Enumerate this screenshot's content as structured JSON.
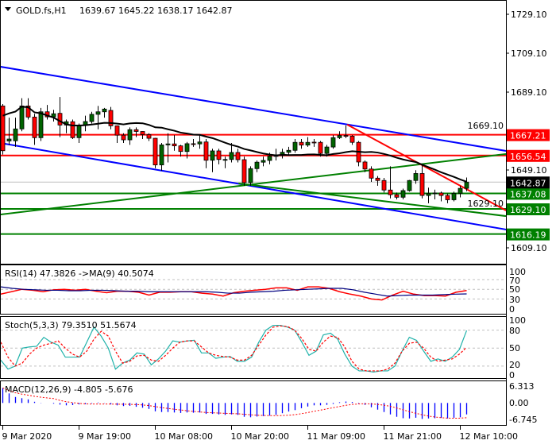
{
  "header": {
    "menu_icon": "triangle-down-icon",
    "symbol": "GOLD.fs,H1",
    "ohlc_readout": "1639.67 1645.22 1638.17 1642.87"
  },
  "colors": {
    "bull": "#006400",
    "bear": "#ff0000",
    "channel": "#0000ff",
    "ma": "#000000",
    "support": "#008000",
    "resistance": "#ff0000",
    "rsi": "#ff0000",
    "rsi_ma": "#000080",
    "stoch_main": "#20b2aa",
    "stoch_signal": "#ff0000",
    "macd_hist": "#0000ff",
    "macd_signal": "#ff0000"
  },
  "chart_data": [
    {
      "type": "candlestick",
      "title": "GOLD.fs,H1",
      "ylim": [
        1604,
        1737
      ],
      "y_ticks": [
        "1729.10",
        "1709.10",
        "1689.10",
        "1669.10",
        "1649.10",
        "1629.10",
        "1609.10"
      ],
      "x_ticks": [
        {
          "bar": 0,
          "label": "9 Mar 2020"
        },
        {
          "bar": 12,
          "label": "9 Mar 19:00"
        },
        {
          "bar": 24,
          "label": "10 Mar 08:00"
        },
        {
          "bar": 36,
          "label": "10 Mar 20:00"
        },
        {
          "bar": 48,
          "label": "11 Mar 09:00"
        },
        {
          "bar": 60,
          "label": "11 Mar 21:00"
        },
        {
          "bar": 72,
          "label": "12 Mar 10:00"
        }
      ],
      "ohlc": [
        [
          1682,
          1683,
          1657,
          1659
        ],
        [
          1664,
          1676,
          1662,
          1665
        ],
        [
          1664.1,
          1676,
          1661,
          1670.2
        ],
        [
          1670.2,
          1686,
          1669,
          1682
        ],
        [
          1682,
          1686,
          1675,
          1676.3
        ],
        [
          1676.3,
          1678,
          1662,
          1665.7
        ],
        [
          1665.7,
          1681,
          1664,
          1679
        ],
        [
          1679,
          1682.5,
          1675,
          1676.4
        ],
        [
          1676.4,
          1680,
          1674,
          1678
        ],
        [
          1678.2,
          1686.6,
          1666,
          1672.2
        ],
        [
          1672.2,
          1675,
          1668,
          1673.9
        ],
        [
          1673.9,
          1675,
          1665,
          1665.7
        ],
        [
          1665.7,
          1673,
          1663,
          1672.2
        ],
        [
          1672.2,
          1677,
          1669,
          1674
        ],
        [
          1674,
          1679,
          1673,
          1677.7
        ],
        [
          1677.7,
          1682,
          1670,
          1679
        ],
        [
          1679,
          1681,
          1676,
          1680.4
        ],
        [
          1679.7,
          1681.5,
          1670,
          1671.8
        ],
        [
          1671.8,
          1672,
          1663,
          1667
        ],
        [
          1667,
          1668,
          1663,
          1664.6
        ],
        [
          1664.6,
          1671,
          1662,
          1669.8
        ],
        [
          1669.8,
          1671,
          1666,
          1668.9
        ],
        [
          1668.9,
          1669,
          1665,
          1667.3
        ],
        [
          1667.3,
          1668,
          1664,
          1665.4
        ],
        [
          1665.4,
          1665.6,
          1650,
          1651.7
        ],
        [
          1651.7,
          1663,
          1648.7,
          1662
        ],
        [
          1662,
          1668,
          1653,
          1662.5
        ],
        [
          1662.5,
          1667,
          1659,
          1661.5
        ],
        [
          1661.5,
          1662,
          1656,
          1658.6
        ],
        [
          1658.6,
          1663.5,
          1655,
          1662.6
        ],
        [
          1662.6,
          1665,
          1661,
          1662.5
        ],
        [
          1662.5,
          1667,
          1660,
          1663.5
        ],
        [
          1663.5,
          1665,
          1650,
          1654.1
        ],
        [
          1654.1,
          1660,
          1648,
          1658.9
        ],
        [
          1658.9,
          1660,
          1652,
          1654.5
        ],
        [
          1654.5,
          1656,
          1650,
          1654.5
        ],
        [
          1654.5,
          1663,
          1653,
          1658.1
        ],
        [
          1658.1,
          1660,
          1653,
          1654.4
        ],
        [
          1654.4,
          1656,
          1641,
          1642.6
        ],
        [
          1642.6,
          1651,
          1641,
          1649.8
        ],
        [
          1649.8,
          1654,
          1648,
          1653.1
        ],
        [
          1653.1,
          1656,
          1651,
          1654
        ],
        [
          1654,
          1658,
          1652,
          1656.2
        ],
        [
          1656.2,
          1660,
          1654,
          1656.5
        ],
        [
          1656.5,
          1660,
          1655,
          1658.2
        ],
        [
          1658.2,
          1661,
          1657,
          1659.2
        ],
        [
          1659.2,
          1665,
          1658,
          1663.3
        ],
        [
          1663.3,
          1665,
          1660,
          1661.9
        ],
        [
          1661.9,
          1666,
          1661,
          1663.3
        ],
        [
          1663.4,
          1665,
          1661,
          1663.2
        ],
        [
          1663.3,
          1664,
          1656,
          1657.6
        ],
        [
          1657.6,
          1662,
          1656,
          1660.9
        ],
        [
          1660.9,
          1667,
          1660,
          1665.7
        ],
        [
          1665.7,
          1669,
          1665,
          1666.8
        ],
        [
          1666.8,
          1672,
          1665.5,
          1666.5
        ],
        [
          1666.5,
          1667,
          1662,
          1663.3
        ],
        [
          1663.3,
          1664,
          1651,
          1653.2
        ],
        [
          1653.2,
          1654,
          1648,
          1649.6
        ],
        [
          1649.6,
          1651,
          1643,
          1644.9
        ],
        [
          1644.9,
          1646,
          1641,
          1643.7
        ],
        [
          1643.7,
          1645,
          1637.5,
          1638.8
        ],
        [
          1638.8,
          1651,
          1634.5,
          1636.4
        ],
        [
          1636.4,
          1637.5,
          1634,
          1635.1
        ],
        [
          1635.1,
          1639.5,
          1634,
          1638.5
        ],
        [
          1638.5,
          1644,
          1638,
          1643.7
        ],
        [
          1643.7,
          1649,
          1642,
          1647.3
        ],
        [
          1647.3,
          1651.5,
          1634.5,
          1636
        ],
        [
          1636,
          1640,
          1632,
          1637
        ],
        [
          1637,
          1639,
          1634,
          1637.3
        ],
        [
          1637.3,
          1638,
          1633,
          1636
        ],
        [
          1636,
          1637,
          1632,
          1633.8
        ],
        [
          1633.8,
          1638,
          1633,
          1637.1
        ],
        [
          1637.1,
          1641,
          1635,
          1639.67
        ],
        [
          1639.67,
          1645.22,
          1638.17,
          1642.87
        ]
      ],
      "moving_average_period": 20,
      "trendlines": [
        {
          "kind": "channel-upper",
          "color": "#0000ff",
          "from": [
            -0.44,
            1702.2
          ],
          "to": [
            79.2,
            1658.9
          ]
        },
        {
          "kind": "channel-lower",
          "color": "#0000ff",
          "from": [
            -0.44,
            1663.0
          ],
          "to": [
            79.2,
            1618.5
          ]
        },
        {
          "kind": "rising-support",
          "color": "#008000",
          "from": [
            -0.44,
            1626.2
          ],
          "to": [
            79.2,
            1657.3
          ]
        },
        {
          "kind": "falling-support",
          "color": "#008000",
          "from": [
            37.1,
            1642.2
          ],
          "to": [
            79.2,
            1625.4
          ]
        },
        {
          "kind": "falling-resistance",
          "color": "#ff0000",
          "from": [
            54.2,
            1672.4
          ],
          "to": [
            79.2,
            1628.3
          ]
        }
      ],
      "levels": [
        {
          "price": 1667.21,
          "label": "1667.21",
          "color": "#ff0000"
        },
        {
          "price": 1656.54,
          "label": "1656.54",
          "color": "#ff0000"
        },
        {
          "price": 1637.08,
          "label": "1637.08",
          "color": "#008000"
        },
        {
          "price": 1629.1,
          "label": "1629.10",
          "color": "#008000"
        },
        {
          "price": 1616.19,
          "label": "1616.19",
          "color": "#008000"
        }
      ],
      "current_price": {
        "price": 1642.87,
        "label": "1642.87"
      }
    },
    {
      "type": "line",
      "title": "RSI(14) 47.3826  ->MA(9) 40.5074",
      "ylim": [
        0,
        100
      ],
      "y_ticks": [
        "100",
        "70",
        "50",
        "30",
        "0"
      ],
      "levels": [
        70,
        50,
        30
      ],
      "series": [
        {
          "name": "RSI(14)",
          "values": [
            40,
            45,
            50,
            48,
            45,
            49,
            50,
            48,
            50,
            46,
            43,
            46,
            46,
            44,
            38,
            44,
            44,
            45,
            45,
            42,
            40,
            36,
            43,
            46,
            48,
            50,
            53,
            53,
            48,
            55,
            55,
            52,
            45,
            40,
            36,
            30,
            28,
            38,
            46,
            40,
            37,
            37,
            36,
            44,
            47.38
          ]
        },
        {
          "name": "MA(9)",
          "values": [
            55,
            52,
            50,
            49,
            48,
            48,
            47,
            47,
            48,
            48,
            47,
            46,
            46,
            45,
            45,
            45,
            45,
            45,
            45,
            44,
            42,
            42,
            44,
            45,
            46,
            48,
            49,
            50,
            51,
            52,
            52,
            49,
            44,
            40,
            36,
            37,
            38,
            38,
            38,
            39,
            40,
            40.51
          ]
        }
      ]
    },
    {
      "type": "line",
      "title": "Stoch(5,3,3) 79.3510 51.5674",
      "ylim": [
        0,
        100
      ],
      "y_ticks": [
        "100",
        "80",
        "50",
        "20",
        "0"
      ],
      "levels": [
        80,
        50,
        20
      ],
      "series": [
        {
          "name": "Stoch main",
          "values": [
            30,
            15,
            20,
            50,
            52,
            53,
            68,
            60,
            55,
            35,
            35,
            35,
            60,
            85,
            70,
            50,
            15,
            25,
            30,
            42,
            40,
            22,
            32,
            45,
            62,
            60,
            62,
            63,
            42,
            42,
            33,
            35,
            36,
            28,
            28,
            35,
            60,
            80,
            88,
            88,
            85,
            80,
            60,
            38,
            45,
            72,
            75,
            65,
            40,
            20,
            12,
            12,
            10,
            12,
            12,
            20,
            45,
            68,
            63,
            45,
            28,
            32,
            28,
            35,
            48,
            79.35
          ]
        },
        {
          "name": "Stoch signal",
          "values": [
            60,
            35,
            20,
            25,
            40,
            50,
            55,
            58,
            62,
            50,
            40,
            35,
            45,
            65,
            78,
            70,
            45,
            25,
            28,
            37,
            38,
            30,
            28,
            38,
            50,
            60,
            62,
            62,
            52,
            42,
            38,
            36,
            35,
            30,
            30,
            38,
            55,
            72,
            85,
            87,
            86,
            80,
            66,
            48,
            45,
            60,
            70,
            68,
            52,
            28,
            15,
            12,
            12,
            12,
            15,
            25,
            45,
            58,
            60,
            50,
            35,
            28,
            30,
            32,
            40,
            51.57
          ]
        }
      ]
    },
    {
      "type": "bar",
      "title": "MACD(12,26,9) -4.805 -5.676",
      "ylim": [
        -6.745,
        6.313
      ],
      "y_ticks": [
        "6.313",
        "0.00",
        "-6.745"
      ],
      "histogram": [
        6.3,
        4,
        2.5,
        2,
        1.5,
        0.5,
        0.1,
        0,
        -0.3,
        -0.7,
        -1,
        -0.9,
        -0.6,
        -0.5,
        -0.2,
        0.2,
        0.1,
        -0.6,
        -1,
        -1.3,
        -1.2,
        -1.6,
        -2,
        -2.5,
        -3.5,
        -3.8,
        -3.8,
        -4,
        -4.2,
        -4,
        -4.1,
        -4,
        -4.6,
        -4.6,
        -4.8,
        -5,
        -4.8,
        -5,
        -5.8,
        -6,
        -5.7,
        -5.5,
        -5.3,
        -5.0,
        -4.3,
        -3.6,
        -3,
        -2.2,
        -1.5,
        -1,
        -1,
        -0.8,
        -0.4,
        0.3,
        0.6,
        0.4,
        -0.2,
        -0.8,
        -1.8,
        -2.8,
        -3.8,
        -4.8,
        -5.8,
        -6.4,
        -6.5,
        -6.2,
        -6.7,
        -6.5,
        -6.4,
        -6.3,
        -6.5,
        -6.2,
        -6.0,
        -4.805
      ],
      "signal_period": 9
    }
  ]
}
